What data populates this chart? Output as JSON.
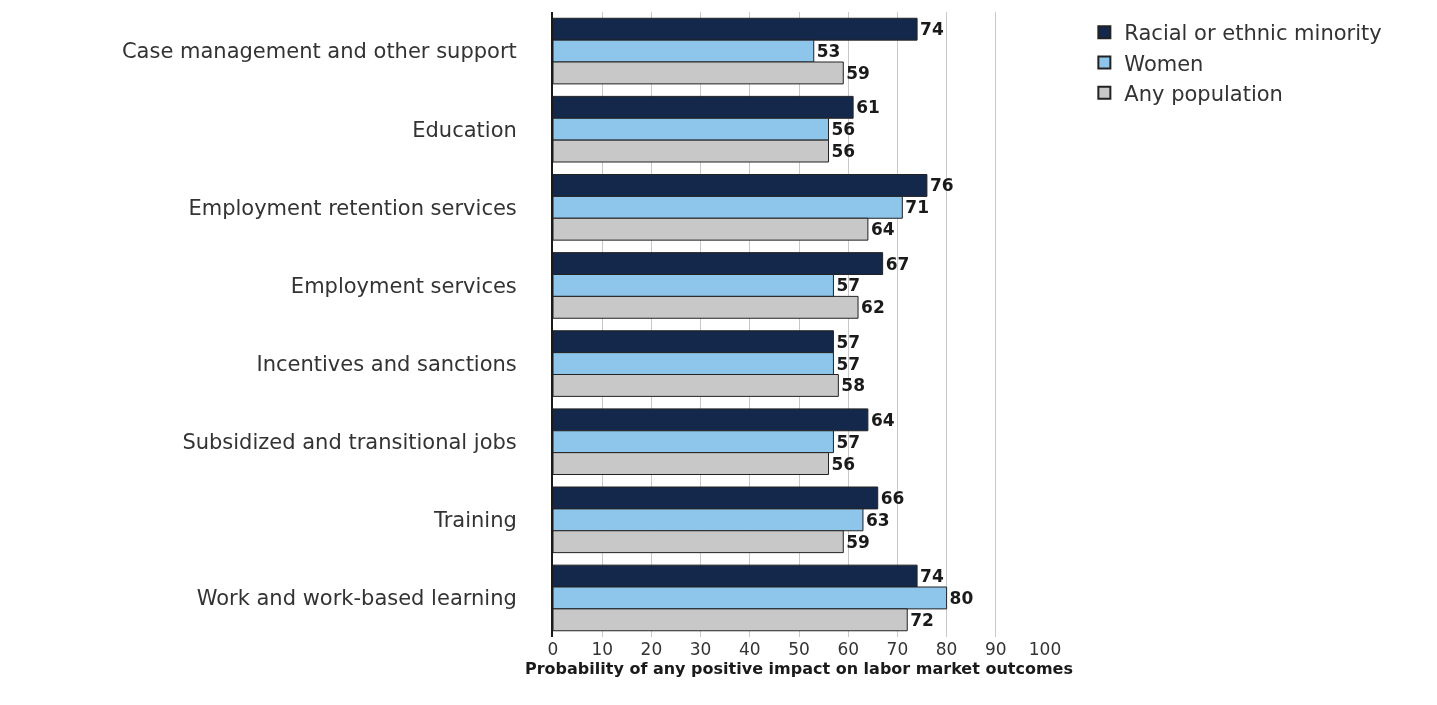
{
  "chart_data": {
    "type": "bar",
    "orientation": "horizontal",
    "xlabel": "Probability of any positive impact on labor market outcomes",
    "categories": [
      "Case management and other support",
      "Education",
      "Employment retention services",
      "Employment services",
      "Incentives and sanctions",
      "Subsidized and transitional jobs",
      "Training",
      "Work and work-based learning"
    ],
    "series": [
      {
        "name": "Racial or ethnic minority",
        "color": "#14284b",
        "values": [
          74,
          61,
          76,
          67,
          57,
          64,
          66,
          74
        ]
      },
      {
        "name": "Women",
        "color": "#8ec5ea",
        "values": [
          53,
          56,
          71,
          57,
          57,
          57,
          63,
          80
        ]
      },
      {
        "name": "Any population",
        "color": "#c8c8c8",
        "values": [
          59,
          56,
          64,
          62,
          58,
          56,
          59,
          72
        ]
      }
    ],
    "xlim": [
      0,
      100
    ],
    "xticks": [
      0,
      10,
      20,
      30,
      40,
      50,
      60,
      70,
      80,
      90,
      100
    ],
    "grid": "x",
    "legend": "top right",
    "data_labels": true
  }
}
